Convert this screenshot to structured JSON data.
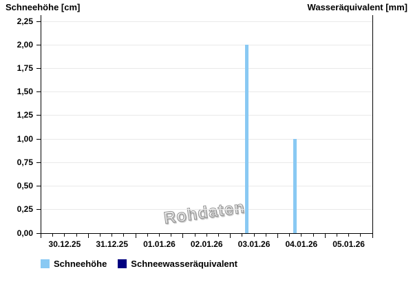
{
  "chart_data": {
    "type": "bar",
    "title_left": "Schneehöhe [cm]",
    "title_right": "Wasseräquivalent [mm]",
    "watermark": "Rohdaten",
    "x_categories": [
      "30.12.25",
      "31.12.25",
      "01.01.26",
      "02.01.26",
      "03.01.26",
      "04.01.26",
      "05.01.26"
    ],
    "y_ticks": [
      0,
      0.25,
      0.5,
      0.75,
      1,
      1.25,
      1.5,
      1.75,
      2,
      2.25
    ],
    "y_tick_labels": [
      "0,00",
      "0,25",
      "0,50",
      "0,75",
      "1,00",
      "1,25",
      "1,50",
      "1,75",
      "2,00",
      "2,25"
    ],
    "ylim": [
      0,
      2.25
    ],
    "grid": "horizontal-only",
    "minor_x_ticks_per_day": 4,
    "legend_position": "bottom-left",
    "series": [
      {
        "name": "Schneehöhe",
        "unit": "cm",
        "color": "#89c9f3",
        "points": [
          {
            "date": "03.01.26",
            "time_fraction_of_day": 0.35,
            "value": 2.0
          },
          {
            "date": "04.01.26",
            "time_fraction_of_day": 0.36,
            "value": 1.0
          }
        ]
      },
      {
        "name": "Schneewasseräquivalent",
        "unit": "mm",
        "color": "#000080",
        "points": []
      }
    ],
    "colors": {
      "axis": "#000000",
      "gridline": "#e9e9e9",
      "watermark_gray": "#8f8f8f",
      "background": "#ffffff"
    }
  }
}
